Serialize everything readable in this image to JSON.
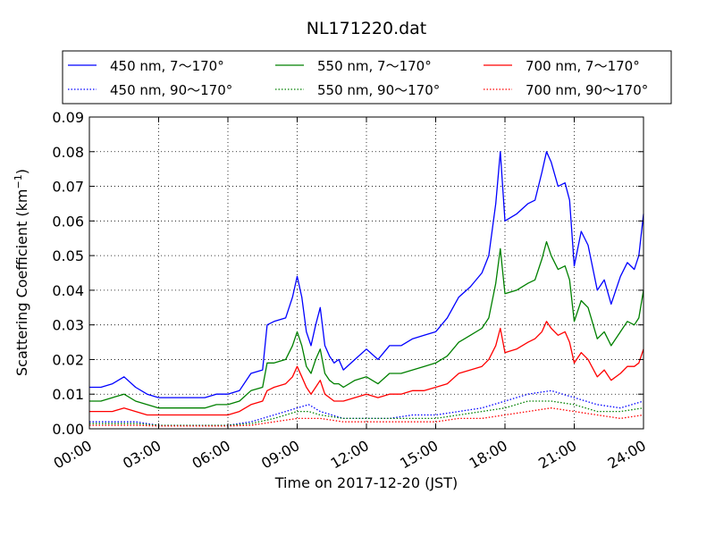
{
  "chart_data": {
    "type": "line",
    "title": "NL171220.dat",
    "xlabel": "Time on 2017-12-20 (JST)",
    "ylabel": "Scattering Coefficient (km",
    "ylabel_sup": "−1",
    "ylabel_close": ")",
    "xlim": [
      0,
      24
    ],
    "ylim": [
      0,
      0.09
    ],
    "grid": true,
    "legend_position": "top",
    "x_ticks": [
      0,
      3,
      6,
      9,
      12,
      15,
      18,
      21,
      24
    ],
    "x_tick_labels": [
      "00:00",
      "03:00",
      "06:00",
      "09:00",
      "12:00",
      "15:00",
      "18:00",
      "21:00",
      "24:00"
    ],
    "y_ticks": [
      0,
      0.01,
      0.02,
      0.03,
      0.04,
      0.05,
      0.06,
      0.07,
      0.08,
      0.09
    ],
    "y_tick_labels": [
      "0.00",
      "0.01",
      "0.02",
      "0.03",
      "0.04",
      "0.05",
      "0.06",
      "0.07",
      "0.08",
      "0.09"
    ],
    "series": [
      {
        "name": "450 nm, 7～170°",
        "color": "#0000ff",
        "style": "solid",
        "x": [
          0,
          0.5,
          1,
          1.5,
          2,
          2.5,
          3,
          3.5,
          4,
          4.5,
          5,
          5.5,
          6,
          6.5,
          7,
          7.5,
          7.7,
          8,
          8.5,
          8.8,
          9,
          9.2,
          9.4,
          9.6,
          9.8,
          10,
          10.2,
          10.4,
          10.6,
          10.8,
          11,
          11.5,
          12,
          12.5,
          13,
          13.5,
          14,
          14.5,
          15,
          15.5,
          16,
          16.5,
          17,
          17.3,
          17.6,
          17.8,
          18,
          18.5,
          19,
          19.3,
          19.6,
          19.8,
          20,
          20.3,
          20.6,
          20.8,
          21,
          21.3,
          21.6,
          22,
          22.3,
          22.6,
          23,
          23.3,
          23.6,
          23.8,
          24
        ],
        "y": [
          0.012,
          0.012,
          0.013,
          0.015,
          0.012,
          0.01,
          0.009,
          0.009,
          0.009,
          0.009,
          0.009,
          0.01,
          0.01,
          0.011,
          0.016,
          0.017,
          0.03,
          0.031,
          0.032,
          0.038,
          0.044,
          0.038,
          0.028,
          0.024,
          0.03,
          0.035,
          0.024,
          0.021,
          0.019,
          0.02,
          0.017,
          0.02,
          0.023,
          0.02,
          0.024,
          0.024,
          0.026,
          0.027,
          0.028,
          0.032,
          0.038,
          0.041,
          0.045,
          0.05,
          0.065,
          0.08,
          0.06,
          0.062,
          0.065,
          0.066,
          0.074,
          0.08,
          0.077,
          0.07,
          0.071,
          0.066,
          0.047,
          0.057,
          0.053,
          0.04,
          0.043,
          0.036,
          0.044,
          0.048,
          0.046,
          0.05,
          0.062
        ]
      },
      {
        "name": "550 nm, 7～170°",
        "color": "#008000",
        "style": "solid",
        "x": [
          0,
          0.5,
          1,
          1.5,
          2,
          2.5,
          3,
          3.5,
          4,
          4.5,
          5,
          5.5,
          6,
          6.5,
          7,
          7.5,
          7.7,
          8,
          8.5,
          8.8,
          9,
          9.2,
          9.4,
          9.6,
          9.8,
          10,
          10.2,
          10.4,
          10.6,
          10.8,
          11,
          11.5,
          12,
          12.5,
          13,
          13.5,
          14,
          14.5,
          15,
          15.5,
          16,
          16.5,
          17,
          17.3,
          17.6,
          17.8,
          18,
          18.5,
          19,
          19.3,
          19.6,
          19.8,
          20,
          20.3,
          20.6,
          20.8,
          21,
          21.3,
          21.6,
          22,
          22.3,
          22.6,
          23,
          23.3,
          23.6,
          23.8,
          24
        ],
        "y": [
          0.008,
          0.008,
          0.009,
          0.01,
          0.008,
          0.007,
          0.006,
          0.006,
          0.006,
          0.006,
          0.006,
          0.007,
          0.007,
          0.008,
          0.011,
          0.012,
          0.019,
          0.019,
          0.02,
          0.024,
          0.028,
          0.024,
          0.018,
          0.016,
          0.02,
          0.023,
          0.016,
          0.014,
          0.013,
          0.013,
          0.012,
          0.014,
          0.015,
          0.013,
          0.016,
          0.016,
          0.017,
          0.018,
          0.019,
          0.021,
          0.025,
          0.027,
          0.029,
          0.032,
          0.042,
          0.052,
          0.039,
          0.04,
          0.042,
          0.043,
          0.049,
          0.054,
          0.05,
          0.046,
          0.047,
          0.043,
          0.031,
          0.037,
          0.035,
          0.026,
          0.028,
          0.024,
          0.028,
          0.031,
          0.03,
          0.032,
          0.04
        ]
      },
      {
        "name": "700 nm, 7～170°",
        "color": "#ff0000",
        "style": "solid",
        "x": [
          0,
          0.5,
          1,
          1.5,
          2,
          2.5,
          3,
          3.5,
          4,
          4.5,
          5,
          5.5,
          6,
          6.5,
          7,
          7.5,
          7.7,
          8,
          8.5,
          8.8,
          9,
          9.2,
          9.4,
          9.6,
          9.8,
          10,
          10.2,
          10.4,
          10.6,
          10.8,
          11,
          11.5,
          12,
          12.5,
          13,
          13.5,
          14,
          14.5,
          15,
          15.5,
          16,
          16.5,
          17,
          17.3,
          17.6,
          17.8,
          18,
          18.5,
          19,
          19.3,
          19.6,
          19.8,
          20,
          20.3,
          20.6,
          20.8,
          21,
          21.3,
          21.6,
          22,
          22.3,
          22.6,
          23,
          23.3,
          23.6,
          23.8,
          24
        ],
        "y": [
          0.005,
          0.005,
          0.005,
          0.006,
          0.005,
          0.004,
          0.004,
          0.004,
          0.004,
          0.004,
          0.004,
          0.004,
          0.004,
          0.005,
          0.007,
          0.008,
          0.011,
          0.012,
          0.013,
          0.015,
          0.018,
          0.015,
          0.012,
          0.01,
          0.012,
          0.014,
          0.01,
          0.009,
          0.008,
          0.008,
          0.008,
          0.009,
          0.01,
          0.009,
          0.01,
          0.01,
          0.011,
          0.011,
          0.012,
          0.013,
          0.016,
          0.017,
          0.018,
          0.02,
          0.024,
          0.029,
          0.022,
          0.023,
          0.025,
          0.026,
          0.028,
          0.031,
          0.029,
          0.027,
          0.028,
          0.025,
          0.019,
          0.022,
          0.02,
          0.015,
          0.017,
          0.014,
          0.016,
          0.018,
          0.018,
          0.019,
          0.023
        ]
      },
      {
        "name": "450 nm, 90～170°",
        "color": "#0000ff",
        "style": "dotted",
        "x": [
          0,
          1,
          2,
          3,
          4,
          5,
          6,
          7,
          8,
          9,
          9.5,
          10,
          11,
          12,
          13,
          14,
          15,
          16,
          17,
          18,
          19,
          20,
          21,
          22,
          23,
          24
        ],
        "y": [
          0.002,
          0.002,
          0.002,
          0.001,
          0.001,
          0.001,
          0.001,
          0.002,
          0.004,
          0.006,
          0.007,
          0.005,
          0.003,
          0.003,
          0.003,
          0.004,
          0.004,
          0.005,
          0.006,
          0.008,
          0.01,
          0.011,
          0.009,
          0.007,
          0.006,
          0.008
        ]
      },
      {
        "name": "550 nm, 90～170°",
        "color": "#008000",
        "style": "dotted",
        "x": [
          0,
          1,
          2,
          3,
          4,
          5,
          6,
          7,
          8,
          9,
          9.5,
          10,
          11,
          12,
          13,
          14,
          15,
          16,
          17,
          18,
          19,
          20,
          21,
          22,
          23,
          24
        ],
        "y": [
          0.0015,
          0.0015,
          0.0015,
          0.001,
          0.001,
          0.001,
          0.001,
          0.0015,
          0.003,
          0.005,
          0.005,
          0.004,
          0.003,
          0.003,
          0.003,
          0.003,
          0.003,
          0.004,
          0.005,
          0.006,
          0.008,
          0.008,
          0.007,
          0.005,
          0.005,
          0.006
        ]
      },
      {
        "name": "700 nm, 90～170°",
        "color": "#ff0000",
        "style": "dotted",
        "x": [
          0,
          1,
          2,
          3,
          4,
          5,
          6,
          7,
          8,
          9,
          9.5,
          10,
          11,
          12,
          13,
          14,
          15,
          16,
          17,
          18,
          19,
          20,
          21,
          22,
          23,
          24
        ],
        "y": [
          0.001,
          0.001,
          0.001,
          0.0008,
          0.0008,
          0.0008,
          0.0008,
          0.001,
          0.002,
          0.003,
          0.003,
          0.003,
          0.002,
          0.002,
          0.002,
          0.002,
          0.002,
          0.003,
          0.003,
          0.004,
          0.005,
          0.006,
          0.005,
          0.004,
          0.003,
          0.004
        ]
      }
    ],
    "legend_order": [
      0,
      1,
      2,
      3,
      4,
      5
    ]
  }
}
